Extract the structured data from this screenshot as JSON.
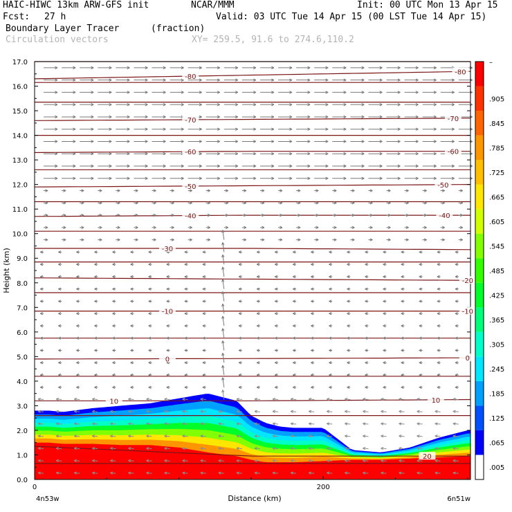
{
  "header": {
    "model": "HAIC-HIWC 13km ARW-GFS init",
    "org": "NCAR/MMM",
    "init": "Init: 00 UTC Mon 13 Apr 15",
    "fcst_label": "Fcst:",
    "fcst_value": "27 h",
    "valid": "Valid: 03 UTC Tue 14 Apr 15 (00 LST Tue 14 Apr 15)",
    "field_name": "Boundary Layer Tracer",
    "field_units": "(fraction)",
    "vector_label": "Circulation vectors",
    "xy_range": "XY= 259.5, 91.6 to 274.6,110.2"
  },
  "chart_data": {
    "type": "heatmap",
    "xlabel": "Distance (km)",
    "ylabel": "Height (km)",
    "xlim": [
      0,
      302
    ],
    "ylim": [
      0,
      17
    ],
    "x_ticks": [
      0,
      200
    ],
    "x_tick_labels": [
      "0",
      "200"
    ],
    "x_end_labels": {
      "left": "4n53w",
      "right": "6n51w"
    },
    "y_ticks": [
      0,
      1,
      2,
      3,
      4,
      5,
      6,
      7,
      8,
      9,
      10,
      11,
      12,
      13,
      14,
      15,
      16,
      17
    ],
    "y_tick_labels": [
      "0.0",
      "1.0",
      "2.0",
      "3.0",
      "4.0",
      "5.0",
      "6.0",
      "7.0",
      "8.0",
      "9.0",
      "10.0",
      "11.0",
      "12.0",
      "13.0",
      "14.0",
      "15.0",
      "16.0",
      "17.0"
    ],
    "colorbar": {
      "labels": [
        ".005",
        ".065",
        ".125",
        ".185",
        ".245",
        ".305",
        ".365",
        ".425",
        ".485",
        ".545",
        ".605",
        ".665",
        ".725",
        ".785",
        ".845",
        ".905"
      ],
      "top_label": "–",
      "colors": [
        "#ffffff",
        "#0000ff",
        "#0050ff",
        "#00a0ff",
        "#00e6ff",
        "#00ffc8",
        "#00ff78",
        "#00ff28",
        "#32ff00",
        "#82ff00",
        "#d2ff00",
        "#ffe600",
        "#ffbe00",
        "#ff9600",
        "#ff6400",
        "#ff3200",
        "#ff0000"
      ]
    },
    "tracer_contour": {
      "x": [
        0,
        10,
        20,
        40,
        60,
        80,
        100,
        120,
        140,
        150,
        160,
        170,
        180,
        200,
        220,
        240,
        260,
        280,
        300,
        302
      ],
      "top": [
        2.8,
        2.8,
        2.75,
        2.9,
        3.0,
        3.1,
        3.3,
        3.5,
        3.2,
        2.6,
        2.3,
        2.15,
        2.1,
        2.1,
        1.2,
        1.1,
        1.3,
        1.7,
        2.0,
        2.0
      ],
      "red_top": [
        1.5,
        1.5,
        1.45,
        1.45,
        1.4,
        1.4,
        1.3,
        1.1,
        0.95,
        0.8,
        0.7,
        0.7,
        0.7,
        0.75,
        0.8,
        0.8,
        0.85,
        0.9,
        0.95,
        0.95
      ]
    },
    "temperature_contours": [
      {
        "value": -80,
        "label": "-80",
        "heights": [
          16.3,
          16.45,
          16.6
        ],
        "label_x": [
          108,
          295
        ]
      },
      {
        "value": -70,
        "label": "-70",
        "heights": [
          14.6,
          14.65,
          14.7
        ],
        "label_x": [
          108,
          290
        ]
      },
      {
        "value": -60,
        "label": "-60",
        "heights": [
          13.3,
          13.35,
          13.35
        ],
        "label_x": [
          108,
          290
        ]
      },
      {
        "value": -50,
        "label": "-50",
        "heights": [
          11.9,
          11.95,
          12.0
        ],
        "label_x": [
          108,
          283
        ]
      },
      {
        "value": -40,
        "label": "-40",
        "heights": [
          10.7,
          10.75,
          10.75
        ],
        "label_x": [
          108,
          284
        ]
      },
      {
        "value": -30,
        "label": "-30",
        "heights": [
          9.4,
          9.4,
          9.35
        ],
        "label_x": [
          92
        ]
      },
      {
        "value": -20,
        "label": "-20",
        "heights": [
          8.2,
          8.15,
          8.1
        ],
        "label_x": [
          300
        ]
      },
      {
        "value": -10,
        "label": "-10",
        "heights": [
          6.85,
          6.85,
          6.85
        ],
        "label_x": [
          92,
          300
        ]
      },
      {
        "value": 0,
        "label": "0",
        "heights": [
          4.9,
          4.92,
          4.95
        ],
        "label_x": [
          92,
          300
        ]
      },
      {
        "value": 10,
        "label": "10",
        "heights": [
          3.2,
          3.2,
          3.25
        ],
        "label_x": [
          55,
          278
        ]
      },
      {
        "value": 20,
        "label": "20",
        "heights": [
          1.35,
          0.95,
          0.95
        ],
        "label_x": [
          272
        ]
      }
    ],
    "extra_isotherms": [
      17.0,
      16.15,
      15.35,
      14.0,
      12.6,
      11.3,
      10.1,
      8.85,
      7.6,
      5.75,
      4.2,
      2.6,
      0.65
    ],
    "vector_field": {
      "x_spacing_km": 12.5,
      "y_spacing_km": 0.5,
      "regimes": [
        {
          "zmin": 12.0,
          "zmax": 17.0,
          "u": 1.0,
          "w": 0.0,
          "len": 20
        },
        {
          "zmin": 9.5,
          "zmax": 12.0,
          "u": 0.6,
          "w": 0.0,
          "len": 10
        },
        {
          "zmin": 3.5,
          "zmax": 9.5,
          "u": -0.8,
          "w": 0.0,
          "len": 6
        },
        {
          "zmin": 0.0,
          "zmax": 3.5,
          "u": -1.0,
          "w": 0.1,
          "len": 8
        }
      ],
      "updraft_x": 132
    }
  }
}
